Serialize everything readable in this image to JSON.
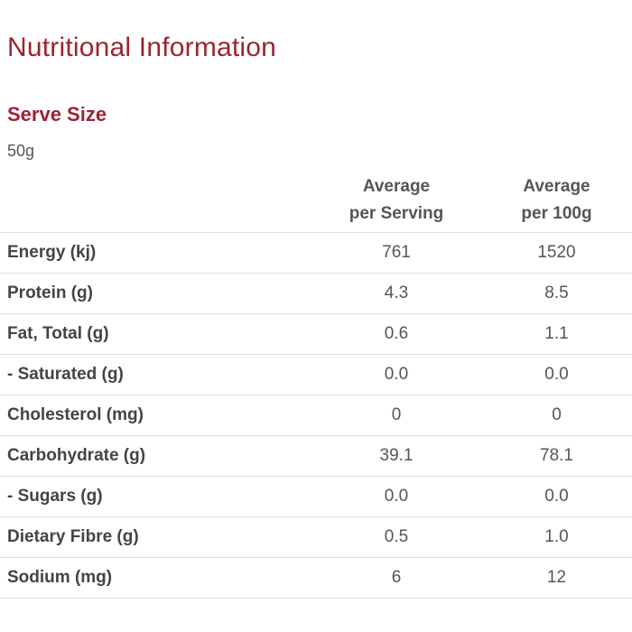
{
  "title": "Nutritional Information",
  "serve_size": {
    "heading": "Serve Size",
    "value": "50g"
  },
  "table": {
    "headers": {
      "per_serving": "Average\nper Serving",
      "per_100g": "Average\nper 100g"
    },
    "rows": [
      {
        "name": "Energy (kj)",
        "per_serving": "761",
        "per_100g": "1520"
      },
      {
        "name": "Protein (g)",
        "per_serving": "4.3",
        "per_100g": "8.5"
      },
      {
        "name": "Fat, Total (g)",
        "per_serving": "0.6",
        "per_100g": "1.1"
      },
      {
        "name": "- Saturated (g)",
        "per_serving": "0.0",
        "per_100g": "0.0"
      },
      {
        "name": "Cholesterol (mg)",
        "per_serving": "0",
        "per_100g": "0"
      },
      {
        "name": "Carbohydrate (g)",
        "per_serving": "39.1",
        "per_100g": "78.1"
      },
      {
        "name": "- Sugars (g)",
        "per_serving": "0.0",
        "per_100g": "0.0"
      },
      {
        "name": "Dietary Fibre (g)",
        "per_serving": "0.5",
        "per_100g": "1.0"
      },
      {
        "name": "Sodium (mg)",
        "per_serving": "6",
        "per_100g": "12"
      }
    ]
  },
  "colors": {
    "heading": "#9b2335",
    "text": "#555555",
    "divider": "#dddddd"
  }
}
